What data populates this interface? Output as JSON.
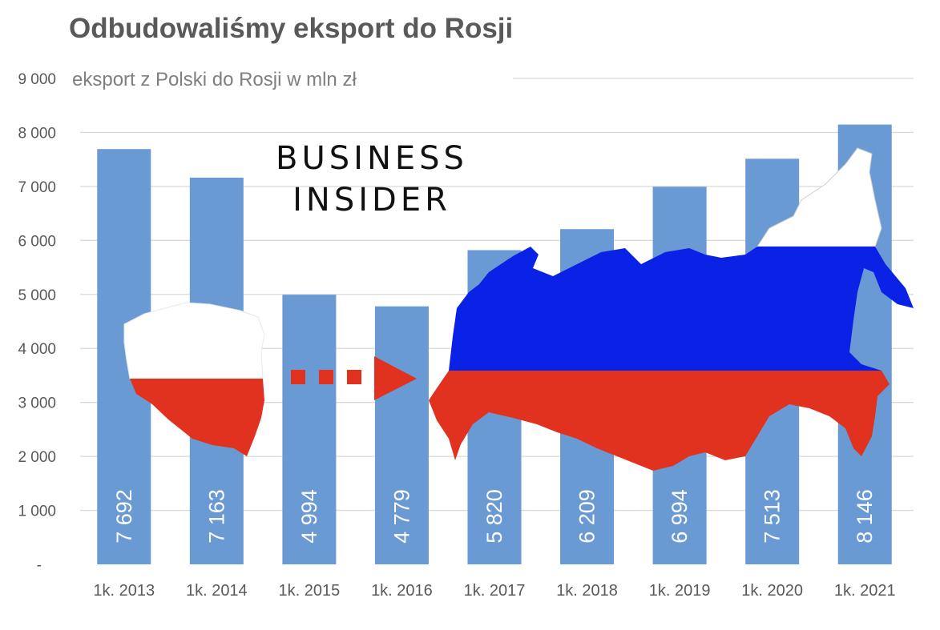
{
  "title": "Odbudowaliśmy eksport do Rosji",
  "subtitle": "eksport z Polski do Rosji w mln zł",
  "brand": {
    "line1": "BUSINESS",
    "line2": "INSIDER"
  },
  "colors": {
    "bar": "#6a9ad4",
    "grid": "#d9d9d9",
    "tick_text": "#595959",
    "poland_red": "#e0321e",
    "russia_blue": "#0a22e6",
    "russia_red": "#e0321e",
    "arrow_red": "#e0321e"
  },
  "chart_data": {
    "type": "bar",
    "title": "Odbudowaliśmy eksport do Rosji",
    "subtitle": "eksport z Polski do Rosji w mln zł",
    "categories": [
      "1k. 2013",
      "1k. 2014",
      "1k. 2015",
      "1k. 2016",
      "1k. 2017",
      "1k. 2018",
      "1k. 2019",
      "1k. 2020",
      "1k. 2021"
    ],
    "values": [
      7692,
      7163,
      4994,
      4779,
      5820,
      6209,
      6994,
      7513,
      8146
    ],
    "value_labels": [
      "7 692",
      "7 163",
      "4 994",
      "4 779",
      "5 820",
      "6 209",
      "6 994",
      "7 513",
      "8 146"
    ],
    "ylim": [
      0,
      9000
    ],
    "yticks": [
      0,
      1000,
      2000,
      3000,
      4000,
      5000,
      6000,
      7000,
      8000,
      9000
    ],
    "ytick_labels": [
      "-",
      "1 000",
      "2 000",
      "3 000",
      "4 000",
      "5 000",
      "6 000",
      "7 000",
      "8 000",
      "9 000"
    ],
    "grid": true,
    "legend": "none"
  }
}
